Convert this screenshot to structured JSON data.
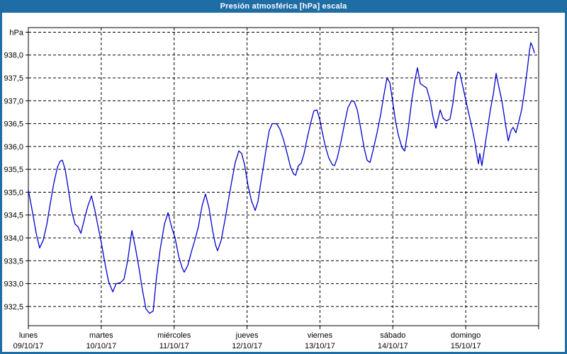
{
  "window": {
    "title": "Presión atmosférica [hPa] escala"
  },
  "colors": {
    "titlebar_bg": "#1f6da5",
    "window_border": "#1f6da5",
    "title_text": "#ffffff",
    "plot_bg": "#ffffff",
    "plot_border": "#000000",
    "grid": "#000000",
    "axis_text": "#000000",
    "line": "#0000cc"
  },
  "chart_data": {
    "type": "line",
    "title": "Presión atmosférica [hPa] escala",
    "grid": true,
    "legend": "none",
    "y_axis": {
      "unit_label": "hPa",
      "top_line_value": 938.5,
      "ylim": [
        932.08,
        938.6
      ],
      "tick_values": [
        938.0,
        937.5,
        937.0,
        936.5,
        936.0,
        935.5,
        935.0,
        934.5,
        934.0,
        933.5,
        933.0,
        932.5
      ],
      "tick_labels": [
        "938,0",
        "937,5",
        "937,0",
        "936,5",
        "936,0",
        "935,5",
        "935,0",
        "934,5",
        "934,0",
        "933,5",
        "933,0",
        "932,5"
      ]
    },
    "x_axis": {
      "hours_total": 168,
      "grid": "daily",
      "days": [
        {
          "weekday": "lunes",
          "date": "09/10/17"
        },
        {
          "weekday": "martes",
          "date": "10/10/17"
        },
        {
          "weekday": "miércoles",
          "date": "11/10/17"
        },
        {
          "weekday": "jueves",
          "date": "12/10/17"
        },
        {
          "weekday": "viernes",
          "date": "13/10/17"
        },
        {
          "weekday": "sábado",
          "date": "14/10/17"
        },
        {
          "weekday": "domingo",
          "date": "15/10/17"
        }
      ]
    },
    "series": [
      {
        "name": "Presión atmosférica",
        "unit": "hPa",
        "points_hours_hpa": [
          [
            0,
            935.05
          ],
          [
            1.4,
            934.55
          ],
          [
            2.6,
            934.1
          ],
          [
            3.7,
            933.78
          ],
          [
            4.9,
            933.95
          ],
          [
            6.1,
            934.3
          ],
          [
            7.2,
            934.75
          ],
          [
            8.4,
            935.2
          ],
          [
            9.6,
            935.55
          ],
          [
            10.5,
            935.68
          ],
          [
            11.2,
            935.7
          ],
          [
            12.1,
            935.5
          ],
          [
            13.1,
            935.1
          ],
          [
            14.2,
            934.6
          ],
          [
            15.4,
            934.3
          ],
          [
            16.3,
            934.25
          ],
          [
            17.3,
            934.1
          ],
          [
            18.4,
            934.4
          ],
          [
            19.6,
            934.7
          ],
          [
            20.8,
            934.92
          ],
          [
            21.9,
            934.6
          ],
          [
            23.1,
            934.2
          ],
          [
            24,
            933.9
          ],
          [
            25.2,
            933.45
          ],
          [
            26.4,
            933.05
          ],
          [
            27.8,
            932.82
          ],
          [
            28.9,
            933
          ],
          [
            30.3,
            933.02
          ],
          [
            31.5,
            933.1
          ],
          [
            32.7,
            933.5
          ],
          [
            34.1,
            934.16
          ],
          [
            35.2,
            933.8
          ],
          [
            36.4,
            933.35
          ],
          [
            37.6,
            932.85
          ],
          [
            38.7,
            932.45
          ],
          [
            39.9,
            932.35
          ],
          [
            41.1,
            932.4
          ],
          [
            42.2,
            933.15
          ],
          [
            43.4,
            933.75
          ],
          [
            44.8,
            934.3
          ],
          [
            46,
            934.55
          ],
          [
            47.1,
            934.25
          ],
          [
            48.3,
            934.0
          ],
          [
            49.5,
            933.6
          ],
          [
            50.6,
            933.35
          ],
          [
            51.3,
            933.25
          ],
          [
            52.5,
            933.4
          ],
          [
            53.7,
            933.7
          ],
          [
            54.8,
            933.95
          ],
          [
            56,
            934.25
          ],
          [
            57.2,
            934.7
          ],
          [
            58.3,
            934.96
          ],
          [
            59.5,
            934.65
          ],
          [
            60.7,
            934.15
          ],
          [
            61.6,
            933.85
          ],
          [
            62.3,
            933.72
          ],
          [
            63.5,
            933.95
          ],
          [
            64.6,
            934.35
          ],
          [
            65.8,
            934.8
          ],
          [
            67,
            935.25
          ],
          [
            68.1,
            935.65
          ],
          [
            69.3,
            935.9
          ],
          [
            70.2,
            935.85
          ],
          [
            71.2,
            935.6
          ],
          [
            72.3,
            935.15
          ],
          [
            73.5,
            934.8
          ],
          [
            74.7,
            934.6
          ],
          [
            75.6,
            934.8
          ],
          [
            76.5,
            935.2
          ],
          [
            77.5,
            935.6
          ],
          [
            78.4,
            936
          ],
          [
            79.3,
            936.35
          ],
          [
            80.3,
            936.5
          ],
          [
            81.7,
            936.5
          ],
          [
            82.8,
            936.38
          ],
          [
            84,
            936.15
          ],
          [
            85.2,
            935.85
          ],
          [
            86.3,
            935.55
          ],
          [
            87.3,
            935.4
          ],
          [
            88,
            935.37
          ],
          [
            88.9,
            935.58
          ],
          [
            89.8,
            935.63
          ],
          [
            90.8,
            935.85
          ],
          [
            91.7,
            936.15
          ],
          [
            92.9,
            936.5
          ],
          [
            94,
            936.78
          ],
          [
            95,
            936.8
          ],
          [
            95.9,
            936.6
          ],
          [
            96.8,
            936.3
          ],
          [
            97.8,
            936
          ],
          [
            98.9,
            935.75
          ],
          [
            100.1,
            935.6
          ],
          [
            100.8,
            935.58
          ],
          [
            101.7,
            935.75
          ],
          [
            102.9,
            936.1
          ],
          [
            104.1,
            936.5
          ],
          [
            105.2,
            936.85
          ],
          [
            106.4,
            937
          ],
          [
            107.3,
            936.98
          ],
          [
            108.3,
            936.8
          ],
          [
            109.4,
            936.4
          ],
          [
            110.6,
            935.95
          ],
          [
            111.5,
            935.7
          ],
          [
            112.5,
            935.65
          ],
          [
            113.6,
            935.95
          ],
          [
            114.8,
            936.3
          ],
          [
            116,
            936.7
          ],
          [
            117.1,
            937.15
          ],
          [
            118.1,
            937.5
          ],
          [
            119,
            937.4
          ],
          [
            119.9,
            937
          ],
          [
            120.9,
            936.55
          ],
          [
            121.8,
            936.25
          ],
          [
            123,
            935.98
          ],
          [
            123.9,
            935.9
          ],
          [
            125.1,
            936.4
          ],
          [
            126.2,
            937
          ],
          [
            127.2,
            937.42
          ],
          [
            128.1,
            937.72
          ],
          [
            129,
            937.38
          ],
          [
            130,
            937.33
          ],
          [
            131.1,
            937.28
          ],
          [
            132.3,
            937
          ],
          [
            133.2,
            936.65
          ],
          [
            134.2,
            936.4
          ],
          [
            134.9,
            936.6
          ],
          [
            135.6,
            936.8
          ],
          [
            136.5,
            936.62
          ],
          [
            137.7,
            936.56
          ],
          [
            138.8,
            936.6
          ],
          [
            139.8,
            936.95
          ],
          [
            140.7,
            937.45
          ],
          [
            141.4,
            937.63
          ],
          [
            142.1,
            937.6
          ],
          [
            143,
            937.32
          ],
          [
            144,
            937.02
          ],
          [
            144.9,
            936.75
          ],
          [
            146.1,
            936.4
          ],
          [
            147,
            936.1
          ],
          [
            147.7,
            935.8
          ],
          [
            148.2,
            935.62
          ],
          [
            148.6,
            935.85
          ],
          [
            149.3,
            935.58
          ],
          [
            150.3,
            936
          ],
          [
            151.2,
            936.4
          ],
          [
            152.1,
            936.8
          ],
          [
            153.1,
            937.15
          ],
          [
            154,
            937.6
          ],
          [
            154.9,
            937.3
          ],
          [
            155.9,
            937
          ],
          [
            156.6,
            936.7
          ],
          [
            157.3,
            936.4
          ],
          [
            158,
            936.12
          ],
          [
            158.9,
            936.35
          ],
          [
            159.6,
            936.42
          ],
          [
            160.5,
            936.3
          ],
          [
            161.5,
            936.55
          ],
          [
            162.4,
            936.8
          ],
          [
            163.3,
            937.2
          ],
          [
            164.3,
            937.7
          ],
          [
            165,
            938.1
          ],
          [
            165.4,
            938.27
          ],
          [
            165.9,
            938.2
          ],
          [
            166.6,
            938.05
          ]
        ]
      }
    ]
  }
}
